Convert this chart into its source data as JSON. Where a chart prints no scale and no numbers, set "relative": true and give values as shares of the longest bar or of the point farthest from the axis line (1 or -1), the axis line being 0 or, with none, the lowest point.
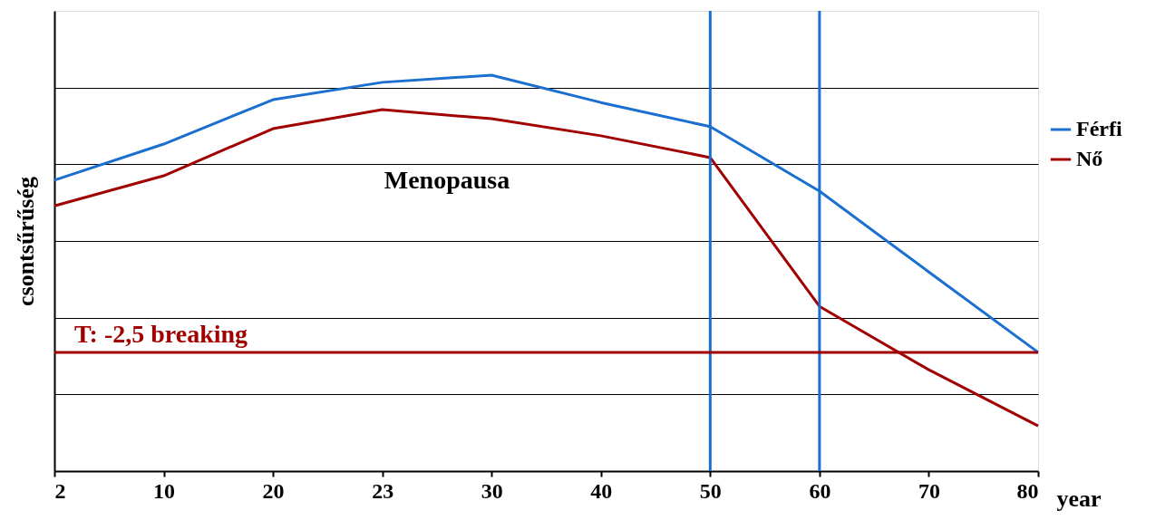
{
  "chart_data": {
    "type": "line",
    "relative": true,
    "categories": [
      "2",
      "10",
      "20",
      "23",
      "30",
      "40",
      "50",
      "60",
      "70",
      "80"
    ],
    "xlabel": "year",
    "ylabel": "csontsűrűség",
    "legend": "right",
    "grid": "y",
    "marker": "none",
    "line_style": "solid",
    "series": [
      {
        "name": "Férfi",
        "color": "#1a6fcf",
        "values": [
          0.735,
          0.826,
          0.938,
          0.982,
          1,
          0.931,
          0.87,
          0.707,
          0.503,
          0.3
        ]
      },
      {
        "name": "Nő",
        "color": "#a00000",
        "values": [
          0.67,
          0.746,
          0.865,
          0.913,
          0.89,
          0.847,
          0.792,
          0.416,
          0.256,
          0.114
        ]
      }
    ],
    "ref_lines": [
      {
        "axis": "x",
        "value": "50",
        "color": "#1a6fcf"
      },
      {
        "axis": "x",
        "value": "60",
        "color": "#1a6fcf"
      },
      {
        "axis": "y",
        "value": 0.3,
        "color": "#a00000"
      }
    ],
    "annotations": [
      "Menopausa",
      "T: -2,5 breaking"
    ]
  }
}
